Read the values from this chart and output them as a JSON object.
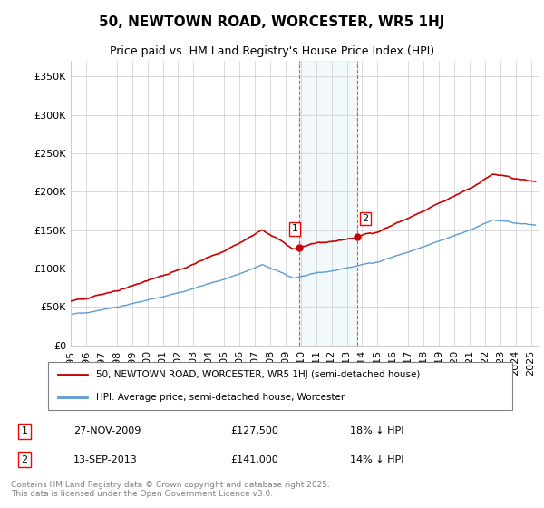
{
  "title": "50, NEWTOWN ROAD, WORCESTER, WR5 1HJ",
  "subtitle": "Price paid vs. HM Land Registry's House Price Index (HPI)",
  "ylabel_ticks": [
    "£0",
    "£50K",
    "£100K",
    "£150K",
    "£200K",
    "£250K",
    "£300K",
    "£350K"
  ],
  "ytick_values": [
    0,
    50000,
    100000,
    150000,
    200000,
    250000,
    300000,
    350000
  ],
  "ylim": [
    0,
    370000
  ],
  "xlim_start": 1995.0,
  "xlim_end": 2025.5,
  "purchase1_x": 2009.9,
  "purchase1_y": 127500,
  "purchase1_label": "1",
  "purchase1_date": "27-NOV-2009",
  "purchase1_price": "£127,500",
  "purchase1_hpi": "18% ↓ HPI",
  "purchase2_x": 2013.7,
  "purchase2_y": 141000,
  "purchase2_label": "2",
  "purchase2_date": "13-SEP-2013",
  "purchase2_price": "£141,000",
  "purchase2_hpi": "14% ↓ HPI",
  "shaded_x1": 2009.9,
  "shaded_x2": 2013.7,
  "red_line_color": "#cc0000",
  "blue_line_color": "#5b9bd5",
  "grid_color": "#cccccc",
  "background_color": "#ffffff",
  "legend_label1": "50, NEWTOWN ROAD, WORCESTER, WR5 1HJ (semi-detached house)",
  "legend_label2": "HPI: Average price, semi-detached house, Worcester",
  "footer": "Contains HM Land Registry data © Crown copyright and database right 2025.\nThis data is licensed under the Open Government Licence v3.0.",
  "title_fontsize": 11,
  "subtitle_fontsize": 9,
  "tick_fontsize": 8,
  "legend_fontsize": 7.5
}
